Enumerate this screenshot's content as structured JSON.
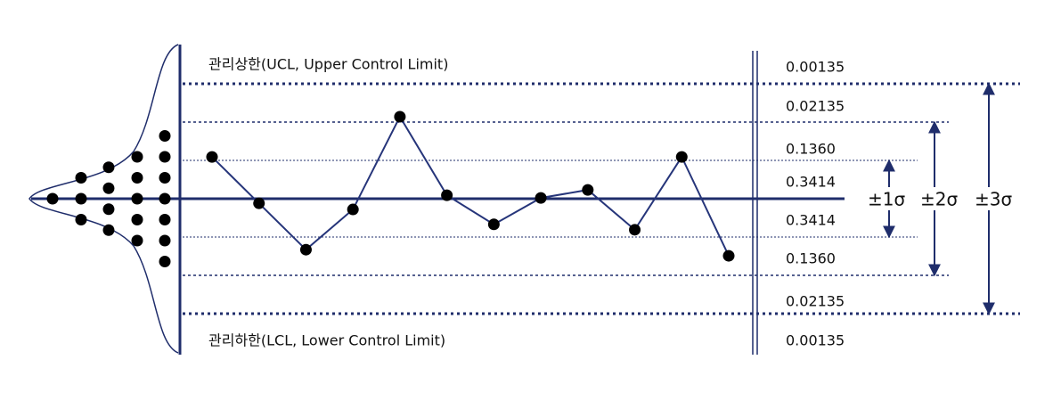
{
  "ucl_label": "관리상한(UCL, Upper Control Limit)",
  "lcl_label": "관리하한(LCL, Lower Control Limit)",
  "probabilities": [
    "0.00135",
    "0.02135",
    "0.1360",
    "0.3414",
    "0.3414",
    "0.1360",
    "0.02135",
    "0.00135"
  ],
  "sigma_labels": [
    "±1σ",
    "±2σ",
    "±3σ"
  ],
  "points": [
    1.09,
    -0.12,
    -1.33,
    -0.28,
    2.14,
    0.09,
    -0.67,
    0.02,
    0.23,
    -0.81,
    1.09,
    -1.49
  ]
}
